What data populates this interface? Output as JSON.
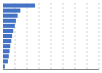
{
  "chart_data": {
    "type": "bar",
    "orientation": "horizontal",
    "categories": [
      null,
      null,
      null,
      null,
      null,
      null,
      null,
      null,
      null,
      null,
      null,
      null,
      null
    ],
    "values": [
      5.34,
      2.89,
      2.44,
      2.15,
      1.97,
      1.71,
      1.52,
      1.38,
      1.21,
      1.09,
      0.97,
      0.82,
      0.31
    ],
    "color": "#4472c4",
    "xlim": [
      0,
      16.0
    ],
    "xticks": [
      2,
      4,
      6,
      8,
      10,
      12,
      14,
      16
    ],
    "grid": true,
    "tick_labels": false
  }
}
